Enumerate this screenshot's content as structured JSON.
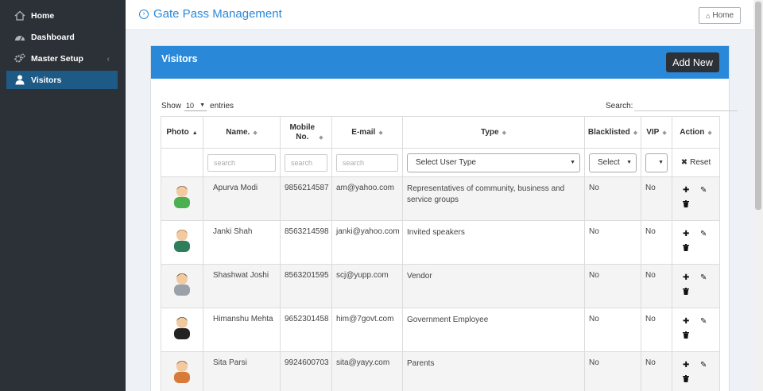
{
  "sidebar": {
    "items": [
      {
        "label": "Home",
        "icon": "home-icon"
      },
      {
        "label": "Dashboard",
        "icon": "dashboard-icon"
      },
      {
        "label": "Master Setup",
        "icon": "gears-icon"
      },
      {
        "label": "Visitors",
        "icon": "user-icon"
      }
    ],
    "active_color": "#1e5a86",
    "background": "#2c3137"
  },
  "header": {
    "title": "Gate Pass Management",
    "home_label": "Home"
  },
  "panel": {
    "title": "Visitors",
    "add_label": "Add New",
    "accent": "#2a88d8"
  },
  "table_controls": {
    "show_label": "Show",
    "page_length": "10",
    "entries_label": "entries",
    "search_label": "Search:"
  },
  "columns": [
    "Photo",
    "Name.",
    "Mobile No.",
    "E-mail",
    "Type",
    "Blacklisted",
    "VIP",
    "Action"
  ],
  "filters": {
    "name_placeholder": "search",
    "mobile_placeholder": "search",
    "email_placeholder": "search",
    "type_select": "Select User Type",
    "blacklist_select": "Select",
    "vip_select": "",
    "reset_label": "Reset"
  },
  "rows": [
    {
      "name": "Apurva Modi",
      "mobile": "9856214587",
      "email": "am@yahoo.com",
      "type": "Representatives of community, business and service groups",
      "blacklisted": "No",
      "vip": "No"
    },
    {
      "name": "Janki Shah",
      "mobile": "8563214598",
      "email": "janki@yahoo.com",
      "type": "Invited speakers",
      "blacklisted": "No",
      "vip": "No"
    },
    {
      "name": "Shashwat Joshi",
      "mobile": "8563201595",
      "email": "scj@yupp.com",
      "type": "Vendor",
      "blacklisted": "No",
      "vip": "No"
    },
    {
      "name": "Himanshu Mehta",
      "mobile": "9652301458",
      "email": "him@7govt.com",
      "type": "Government Employee",
      "blacklisted": "No",
      "vip": "No"
    },
    {
      "name": "Sita Parsi",
      "mobile": "9924600703",
      "email": "sita@yayy.com",
      "type": "Parents",
      "blacklisted": "No",
      "vip": "No"
    }
  ]
}
